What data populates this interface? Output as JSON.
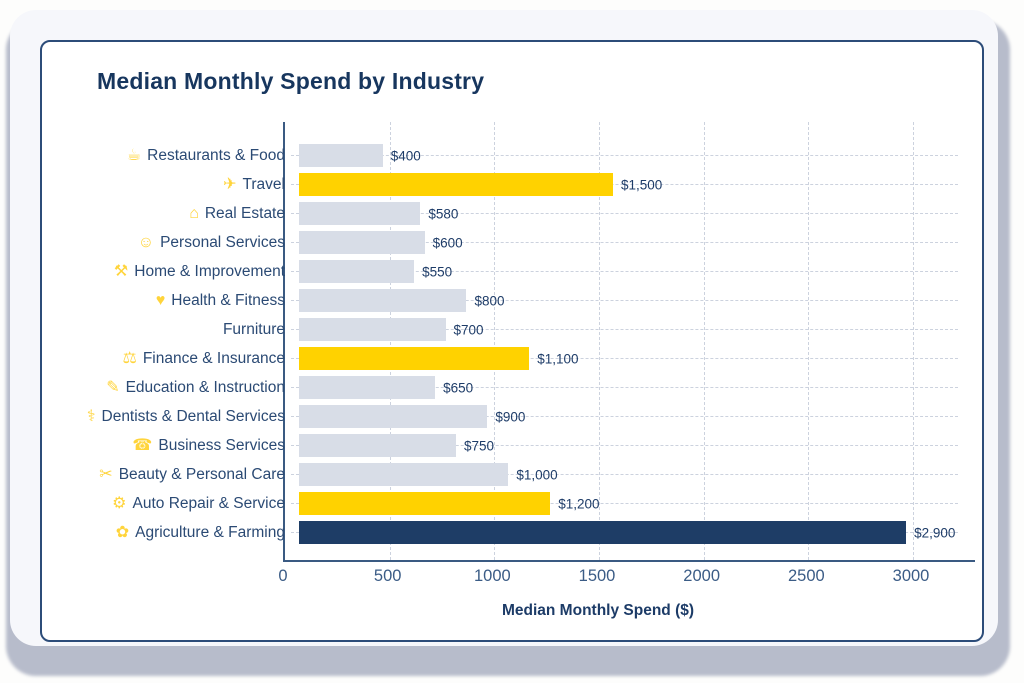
{
  "colors": {
    "bar_gray": "#d8dde7",
    "accent_yellow": "#ffd200",
    "bar_navy": "#1e3d66",
    "icon_yellow": "#ffd43b",
    "navy_text": "#17365e",
    "gridline": "#ccd2de",
    "card_border": "#2c4c79"
  },
  "chart_data": {
    "type": "bar",
    "orientation": "horizontal",
    "title": "Median Monthly Spend by Industry",
    "xlabel": "Median Monthly Spend ($)",
    "xlim": [
      0,
      3000
    ],
    "xticks": [
      0,
      500,
      1000,
      1500,
      2000,
      2500,
      3000
    ],
    "grid": "dashed",
    "legend": false,
    "rows": [
      {
        "category": "Restaurants & Food",
        "icon": "restaurant-icon",
        "glyph": "☕",
        "value": 400,
        "label": "$400",
        "color": "gray"
      },
      {
        "category": "Travel",
        "icon": "travel-icon",
        "glyph": "✈",
        "value": 1500,
        "label": "$1,500",
        "color": "yellow"
      },
      {
        "category": "Real Estate",
        "icon": "real-estate-icon",
        "glyph": "⌂",
        "value": 580,
        "label": "$580",
        "color": "gray"
      },
      {
        "category": "Personal Services",
        "icon": "personal-services-icon",
        "glyph": "☺",
        "value": 600,
        "label": "$600",
        "color": "gray"
      },
      {
        "category": "Home & Improvement",
        "icon": "home-improvement-icon",
        "glyph": "⚒",
        "value": 550,
        "label": "$550",
        "color": "gray"
      },
      {
        "category": "Health & Fitness",
        "icon": "health-fitness-icon",
        "glyph": "♥",
        "value": 800,
        "label": "$800",
        "color": "gray"
      },
      {
        "category": "Furniture",
        "icon": "",
        "glyph": "",
        "value": 700,
        "label": "$700",
        "color": "gray"
      },
      {
        "category": "Finance & Insurance",
        "icon": "finance-icon",
        "glyph": "⚖",
        "value": 1100,
        "label": "$1,100",
        "color": "yellow"
      },
      {
        "category": "Education & Instruction",
        "icon": "education-icon",
        "glyph": "✎",
        "value": 650,
        "label": "$650",
        "color": "gray"
      },
      {
        "category": "Dentists & Dental Services",
        "icon": "dental-icon",
        "glyph": "⚕",
        "value": 900,
        "label": "$900",
        "color": "gray"
      },
      {
        "category": "Business Services",
        "icon": "business-services-icon",
        "glyph": "☎",
        "value": 750,
        "label": "$750",
        "color": "gray"
      },
      {
        "category": "Beauty & Personal Care",
        "icon": "beauty-icon",
        "glyph": "✂",
        "value": 1000,
        "label": "$1,000",
        "color": "gray"
      },
      {
        "category": "Auto Repair & Service",
        "icon": "auto-repair-icon",
        "glyph": "⚙",
        "value": 1200,
        "label": "$1,200",
        "color": "yellow"
      },
      {
        "category": "Agriculture & Farming",
        "icon": "agriculture-icon",
        "glyph": "✿",
        "value": 2900,
        "label": "$2,900",
        "color": "navy"
      }
    ]
  }
}
